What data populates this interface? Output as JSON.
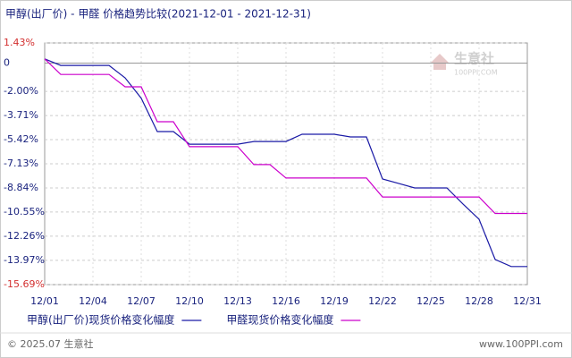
{
  "chart_data": {
    "type": "line",
    "title": "甲醇(出厂价) - 甲醛 价格趋势比较(2021-12-01 - 2021-12-31)",
    "categories": [
      "12/01",
      null,
      null,
      "12/04",
      null,
      null,
      "12/07",
      null,
      null,
      "12/10",
      null,
      null,
      "12/13",
      null,
      null,
      "12/16",
      null,
      null,
      "12/19",
      null,
      null,
      "12/22",
      null,
      null,
      "12/25",
      null,
      null,
      "12/28",
      null,
      null,
      "12/31"
    ],
    "series": [
      {
        "name": "甲醇(出厂价)现货价格变化幅度",
        "color": "#1a1aa6",
        "values": [
          0.3,
          -0.16,
          -0.16,
          -0.16,
          -0.16,
          -1.04,
          -2.48,
          -4.85,
          -4.85,
          -5.74,
          -5.74,
          -5.74,
          -5.74,
          -5.55,
          -5.55,
          -5.55,
          -5.04,
          -5.04,
          -5.04,
          -5.23,
          -5.23,
          -8.21,
          -8.52,
          -8.84,
          -8.84,
          -8.84,
          -9.98,
          -11.06,
          -13.91,
          -14.41,
          -14.41
        ]
      },
      {
        "name": "甲醛现货价格变化幅度",
        "color": "#cc00cc",
        "values": [
          0.3,
          -0.8,
          -0.8,
          -0.8,
          -0.8,
          -1.68,
          -1.68,
          -4.15,
          -4.15,
          -5.92,
          -5.92,
          -5.92,
          -5.92,
          -7.19,
          -7.19,
          -8.14,
          -8.14,
          -8.14,
          -8.14,
          -8.14,
          -8.14,
          -9.48,
          -9.48,
          -9.48,
          -9.48,
          -9.48,
          -9.48,
          -9.48,
          -10.65,
          -10.65,
          -10.65
        ]
      }
    ],
    "ylim": [
      -15.69,
      1.43
    ],
    "yticks": [
      {
        "value": 1.43,
        "label": "1.43%"
      },
      0,
      {
        "value": -2.0,
        "label": "-2.00%"
      },
      {
        "value": -3.71,
        "label": "-3.71%"
      },
      {
        "value": -5.42,
        "label": "-5.42%"
      },
      {
        "value": -7.13,
        "label": "-7.13%"
      },
      {
        "value": -8.84,
        "label": "-8.84%"
      },
      {
        "value": -10.55,
        "label": "-10.55%"
      },
      {
        "value": -12.26,
        "label": "-12.26%"
      },
      {
        "value": -13.97,
        "label": "-13.97%"
      },
      {
        "value": -15.69,
        "label": "-15.69%"
      }
    ],
    "grid": true,
    "watermark": {
      "name": "生意社",
      "url": "100PPI.COM"
    },
    "footer": {
      "copyright": "© 2025.07 生意社",
      "site": "www.100PPI.com"
    }
  }
}
